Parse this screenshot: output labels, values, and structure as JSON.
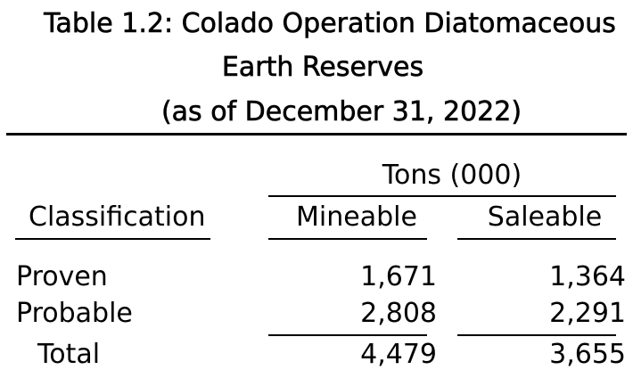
{
  "table": {
    "title": [
      "Table 1.2: Colado Operation Diatomaceous",
      "Earth Reserves",
      "(as of December 31, 2022)"
    ],
    "group_header": "Tons (000)",
    "columns": [
      "Classification",
      "Mineable",
      "Saleable"
    ],
    "rows": [
      [
        "Proven",
        "1,671",
        "1,364"
      ],
      [
        "Probable",
        "2,808",
        "2,291"
      ],
      [
        "Total",
        "4,479",
        "3,655"
      ]
    ]
  }
}
